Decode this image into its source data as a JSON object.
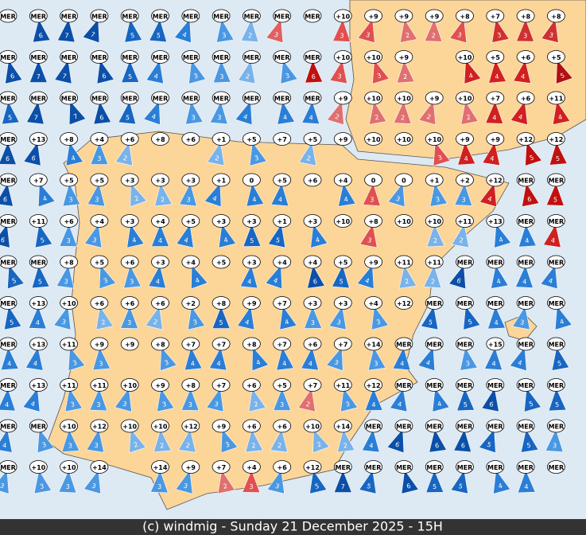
{
  "stations": {
    "rows": [
      [
        [
          "MER",
          null
        ],
        [
          "MER",
          6
        ],
        [
          "MER",
          7
        ],
        [
          "MER",
          7
        ],
        [
          "MER",
          5
        ],
        [
          "MER",
          5
        ],
        [
          "MER",
          4
        ],
        [
          "MER",
          3
        ],
        [
          "MER",
          2
        ],
        [
          "MER",
          3,
          "#e06060"
        ],
        [
          "MER",
          null
        ],
        [
          "+10",
          3,
          "#e05050"
        ],
        [
          "+9",
          3,
          "#e05050"
        ],
        [
          "+9",
          2,
          "#e07070"
        ],
        [
          "+9",
          2,
          "#e07070"
        ],
        [
          "+8",
          3,
          "#e05050"
        ],
        [
          "+7",
          3,
          "#d03030"
        ],
        [
          "+8",
          3,
          "#d03030"
        ],
        [
          "+8",
          3,
          "#d03030"
        ]
      ],
      [
        [
          "MER",
          6
        ],
        [
          "MER",
          7
        ],
        [
          "MER",
          7
        ],
        [
          "MER",
          6
        ],
        [
          "MER",
          5
        ],
        [
          "MER",
          4
        ],
        [
          "MER",
          3
        ],
        [
          "MER",
          3
        ],
        [
          "MER",
          2
        ],
        [
          "MER",
          3
        ],
        [
          "MER",
          6,
          "#c01010"
        ],
        [
          "+10",
          3,
          "#e05050"
        ],
        [
          "+10",
          3,
          "#e05050"
        ],
        [
          "+9",
          2,
          "#e07070"
        ],
        null,
        [
          "+10",
          4,
          "#d02020"
        ],
        [
          "+5",
          4,
          "#d02020"
        ],
        [
          "+6",
          4,
          "#d02020"
        ],
        [
          "+5",
          5,
          "#b01010"
        ]
      ],
      [
        [
          "MER",
          5
        ],
        [
          "MER",
          7
        ],
        [
          "MER",
          7
        ],
        [
          "MER",
          6
        ],
        [
          "MER",
          5
        ],
        [
          "MER",
          4
        ],
        [
          "MER",
          3
        ],
        [
          "MER",
          3
        ],
        [
          "MER",
          4
        ],
        [
          "MER",
          4
        ],
        [
          "MER",
          4
        ],
        [
          "+9",
          2,
          "#e07070"
        ],
        [
          "+10",
          2,
          "#e07070"
        ],
        [
          "+10",
          2,
          "#e07070"
        ],
        [
          "+9",
          2,
          "#e07070"
        ],
        [
          "+10",
          2,
          "#e07070"
        ],
        [
          "+7",
          4,
          "#d02020"
        ],
        [
          "+6",
          4,
          "#d02020"
        ],
        [
          "+11",
          4,
          "#d02020"
        ]
      ],
      [
        [
          "MER",
          6
        ],
        [
          "+13",
          6
        ],
        [
          "+8",
          4
        ],
        [
          "+4",
          3
        ],
        [
          "+6",
          2
        ],
        [
          "+8",
          null
        ],
        [
          "+6",
          null
        ],
        [
          "+1",
          2
        ],
        [
          "+5",
          3
        ],
        [
          "+7",
          null
        ],
        [
          "+5",
          2
        ],
        [
          "+9",
          null
        ],
        [
          "+10",
          null
        ],
        [
          "+10",
          null
        ],
        [
          "+10",
          3,
          "#e05050"
        ],
        [
          "+9",
          4,
          "#d02020"
        ],
        [
          "+9",
          4,
          "#d02020"
        ],
        [
          "+12",
          5,
          "#c01010"
        ],
        [
          "+12",
          5,
          "#c01010"
        ]
      ],
      [
        [
          "MER",
          6
        ],
        [
          "+7",
          4
        ],
        [
          "+5",
          3
        ],
        [
          "+5",
          3
        ],
        [
          "+3",
          2
        ],
        [
          "+3",
          2
        ],
        [
          "+3",
          3
        ],
        [
          "+1",
          4
        ],
        [
          "0",
          4
        ],
        [
          "+5",
          4
        ],
        [
          "+6",
          null
        ],
        [
          "+4",
          4
        ],
        [
          "0",
          3,
          "#e05050"
        ],
        [
          "0",
          3
        ],
        [
          "+1",
          3
        ],
        [
          "+2",
          3
        ],
        [
          "+12",
          4,
          "#d02020"
        ],
        [
          "MER",
          6,
          "#c01010"
        ],
        [
          "MER",
          5,
          "#c01010"
        ]
      ],
      [
        [
          "MER",
          6
        ],
        [
          "+11",
          5
        ],
        [
          "+6",
          3
        ],
        [
          "+4",
          3
        ],
        [
          "+3",
          4
        ],
        [
          "+4",
          4
        ],
        [
          "+5",
          4
        ],
        [
          "+3",
          4
        ],
        [
          "+3",
          5
        ],
        [
          "+1",
          5
        ],
        [
          "+3",
          4
        ],
        [
          "+10",
          null
        ],
        [
          "+8",
          3,
          "#e05050"
        ],
        [
          "+10",
          null
        ],
        [
          "+10",
          2
        ],
        [
          "+11",
          2
        ],
        [
          "+13",
          4
        ],
        [
          "MER",
          4
        ],
        [
          "MER",
          4,
          "#d02020"
        ]
      ],
      [
        [
          "MER",
          5
        ],
        [
          "MER",
          5
        ],
        [
          "+8",
          3
        ],
        [
          "+5",
          3
        ],
        [
          "+6",
          3
        ],
        [
          "+3",
          4
        ],
        [
          "+4",
          4
        ],
        [
          "+5",
          null
        ],
        [
          "+3",
          4
        ],
        [
          "+4",
          4
        ],
        [
          "+4",
          6
        ],
        [
          "+5",
          5
        ],
        [
          "+9",
          4
        ],
        [
          "+11",
          2
        ],
        [
          "+11",
          2
        ],
        [
          "MER",
          6
        ],
        [
          "MER",
          4
        ],
        [
          "MER",
          4
        ],
        [
          "MER",
          4
        ]
      ],
      [
        [
          "MER",
          5
        ],
        [
          "+13",
          4
        ],
        [
          "+10",
          3
        ],
        [
          "+6",
          2
        ],
        [
          "+6",
          3
        ],
        [
          "+6",
          2
        ],
        [
          "+2",
          3
        ],
        [
          "+8",
          5
        ],
        [
          "+9",
          4
        ],
        [
          "+7",
          4
        ],
        [
          "+3",
          3
        ],
        [
          "+3",
          3
        ],
        [
          "+4",
          3
        ],
        [
          "+12",
          null
        ],
        [
          "MER",
          5
        ],
        [
          "MER",
          5
        ],
        [
          "MER",
          4
        ],
        [
          "MER",
          3
        ],
        [
          "MER",
          4
        ]
      ],
      [
        [
          "MER",
          4
        ],
        [
          "+13",
          4
        ],
        [
          "+11",
          3
        ],
        [
          "+9",
          3
        ],
        [
          "+9",
          null
        ],
        [
          "+8",
          3
        ],
        [
          "+7",
          4
        ],
        [
          "+7",
          4
        ],
        [
          "+8",
          4
        ],
        [
          "+7",
          4
        ],
        [
          "+6",
          4
        ],
        [
          "+7",
          3
        ],
        [
          "+14",
          3
        ],
        [
          "MER",
          4
        ],
        [
          "MER",
          4
        ],
        [
          "MER",
          3
        ],
        [
          "+15",
          4
        ],
        [
          "MER",
          4
        ],
        [
          "MER",
          5
        ]
      ],
      [
        [
          "MER",
          4
        ],
        [
          "+13",
          4
        ],
        [
          "+11",
          3
        ],
        [
          "+11",
          3
        ],
        [
          "+10",
          3
        ],
        [
          "+9",
          3
        ],
        [
          "+8",
          3
        ],
        [
          "+7",
          3
        ],
        [
          "+6",
          2
        ],
        [
          "+5",
          3
        ],
        [
          "+7",
          2,
          "#e07070"
        ],
        [
          "+11",
          3
        ],
        [
          "+12",
          4
        ],
        [
          "MER",
          4
        ],
        [
          "MER",
          4
        ],
        [
          "MER",
          5
        ],
        [
          "MER",
          6
        ],
        [
          "MER",
          5
        ],
        [
          "MER",
          5
        ]
      ],
      [
        [
          "MER",
          4
        ],
        [
          "MER",
          3
        ],
        [
          "+10",
          3
        ],
        [
          "+12",
          3
        ],
        [
          "+10",
          2
        ],
        [
          "+10",
          2
        ],
        [
          "+12",
          2
        ],
        [
          "+9",
          3
        ],
        [
          "+6",
          2
        ],
        [
          "+6",
          2
        ],
        [
          "+10",
          2
        ],
        [
          "+14",
          2
        ],
        [
          "MER",
          4
        ],
        [
          "MER",
          6
        ],
        [
          "MER",
          6
        ],
        [
          "MER",
          6
        ],
        [
          "MER",
          5
        ],
        [
          "MER",
          5
        ],
        [
          "MER",
          3
        ]
      ],
      [
        [
          "MER",
          3
        ],
        [
          "+10",
          3
        ],
        [
          "+10",
          3
        ],
        [
          "+14",
          3
        ],
        null,
        [
          "+14",
          3
        ],
        [
          "+9",
          3
        ],
        [
          "+7",
          2,
          "#e07070"
        ],
        [
          "+4",
          3,
          "#e05050"
        ],
        [
          "+6",
          3
        ],
        [
          "+12",
          5
        ],
        [
          "MER",
          7
        ],
        [
          "MER",
          5
        ],
        [
          "MER",
          6
        ],
        [
          "MER",
          5
        ],
        [
          "MER",
          5
        ],
        [
          "MER",
          4
        ],
        [
          "MER",
          4
        ],
        [
          "MER",
          null
        ]
      ]
    ]
  },
  "footer": {
    "text": "(c) windmig - Sunday 21 December 2025 - 15H"
  }
}
